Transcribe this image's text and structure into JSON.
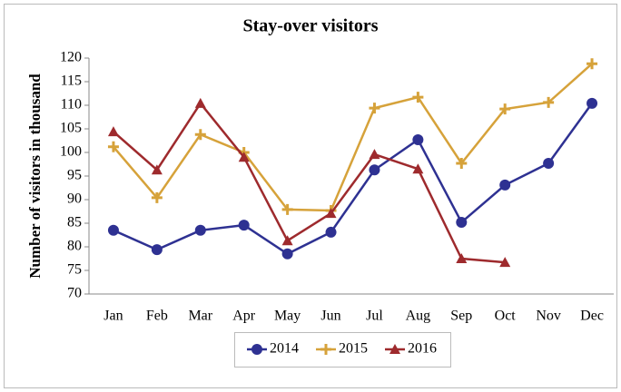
{
  "chart_data": {
    "type": "line",
    "title": "Stay-over visitors",
    "ylabel": "Number of visitors in thousand",
    "categories": [
      "Jan",
      "Feb",
      "Mar",
      "Apr",
      "May",
      "Jun",
      "Jul",
      "Aug",
      "Sep",
      "Oct",
      "Nov",
      "Dec"
    ],
    "series": [
      {
        "name": "2014",
        "color": "#2e3192",
        "marker": "circle",
        "values": [
          83.5,
          79.4,
          83.5,
          84.6,
          78.5,
          83.1,
          96.3,
          102.7,
          85.2,
          93.1,
          97.7,
          110.4
        ]
      },
      {
        "name": "2015",
        "color": "#d6a23a",
        "marker": "plus",
        "values": [
          101.2,
          90.4,
          103.8,
          100,
          87.9,
          87.7,
          109.4,
          111.7,
          97.7,
          109.2,
          110.6,
          118.8
        ]
      },
      {
        "name": "2016",
        "color": "#9e2a2d",
        "marker": "triangle",
        "values": [
          104.4,
          96.3,
          110.4,
          99,
          81.3,
          87.1,
          99.6,
          96.5,
          77.5,
          76.7,
          null,
          null
        ]
      }
    ],
    "ylim": [
      70,
      120
    ],
    "yticks": [
      70,
      75,
      80,
      85,
      90,
      95,
      100,
      105,
      110,
      115,
      120
    ],
    "grid": false,
    "legend": "bottom"
  }
}
